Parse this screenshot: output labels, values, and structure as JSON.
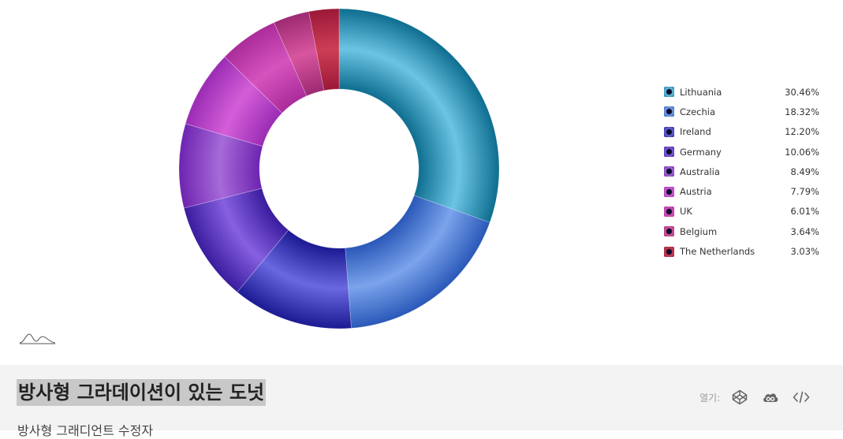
{
  "chart_data": {
    "type": "pie",
    "donut": true,
    "categories": [
      "Lithuania",
      "Czechia",
      "Ireland",
      "Germany",
      "Australia",
      "Austria",
      "UK",
      "Belgium",
      "The Netherlands"
    ],
    "values": [
      30.46,
      18.32,
      12.2,
      10.06,
      8.49,
      7.79,
      6.01,
      3.64,
      3.03
    ],
    "value_labels": [
      "30.46%",
      "18.32%",
      "12.20%",
      "10.06%",
      "8.49%",
      "7.79%",
      "6.01%",
      "3.64%",
      "3.03%"
    ],
    "colors": [
      "#0e6e90",
      "#2a58b8",
      "#1c1a92",
      "#3a1c9e",
      "#6e24b0",
      "#9a2cb4",
      "#aa2c9a",
      "#9c2a72",
      "#9c1838"
    ],
    "highlight_colors": [
      "#6cc4e4",
      "#7ba4ec",
      "#6a68e0",
      "#8660e0",
      "#a66ad8",
      "#d45ed8",
      "#d653be",
      "#d8559f",
      "#cc3e55"
    ],
    "legend_position": "right"
  },
  "footer": {
    "title": "방사형 그라데이션이 있는 도넛",
    "subtitle": "방사형 그래디언트 수정자",
    "open_label": "열기:",
    "icons": [
      "codepen-icon",
      "cloud-icon",
      "code-icon"
    ]
  }
}
